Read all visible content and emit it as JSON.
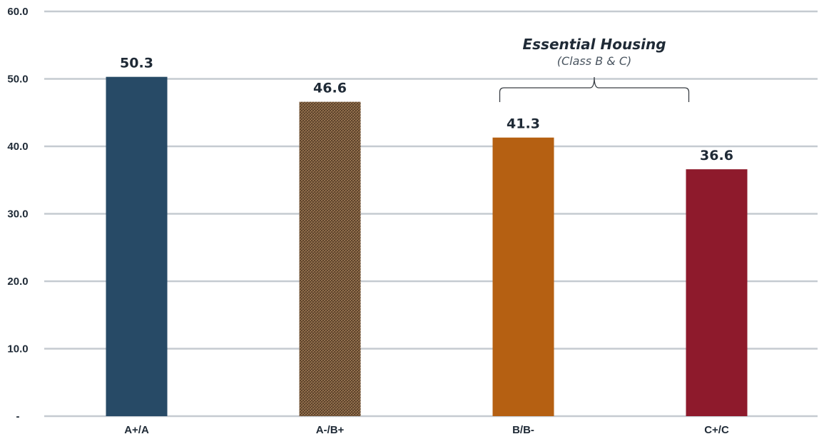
{
  "chart_data": {
    "type": "bar",
    "categories": [
      "A+/A",
      "A-/B+",
      "B/B-",
      "C+/C"
    ],
    "values": [
      50.3,
      46.6,
      41.3,
      36.6
    ],
    "value_labels": [
      "50.3",
      "46.6",
      "41.3",
      "36.6"
    ],
    "bar_colors": [
      "#274a66",
      "#7a5a3a",
      "#b56012",
      "#8e1a2c"
    ],
    "bar_patterns": [
      "solid",
      "crosshatch",
      "solid",
      "solid"
    ],
    "ylim": [
      0,
      60
    ],
    "yticks": [
      0,
      10,
      20,
      30,
      40,
      50,
      60
    ],
    "ytick_labels": [
      "-",
      "10.0",
      "20.0",
      "30.0",
      "40.0",
      "50.0",
      "60.0"
    ],
    "grid": true,
    "title": "",
    "xlabel": "",
    "ylabel": "",
    "annotation": {
      "title": "Essential Housing",
      "subtitle": "(Class B & C)",
      "spans_categories": [
        "B/B-",
        "C+/C"
      ]
    }
  }
}
